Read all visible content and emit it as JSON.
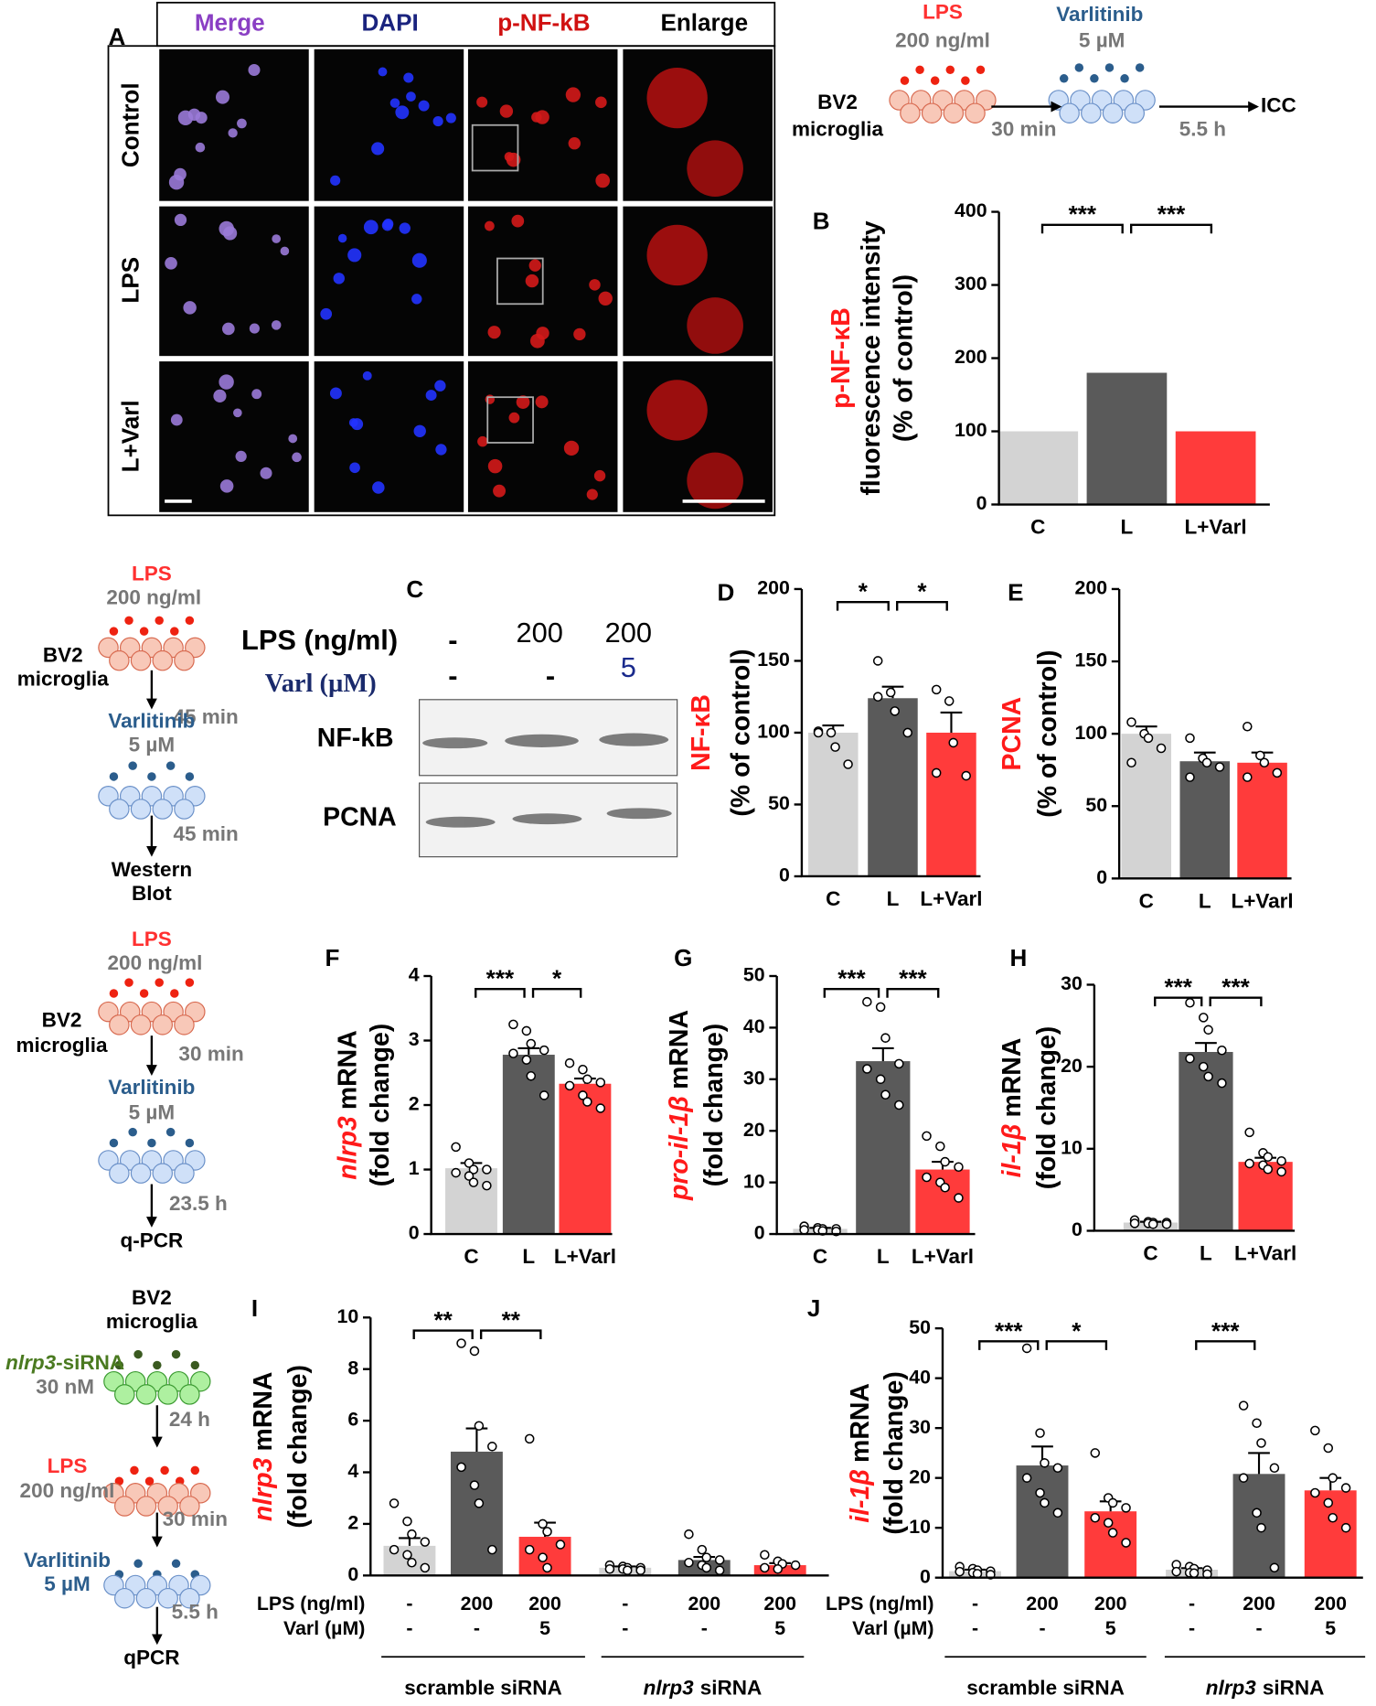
{
  "panel_a": {
    "label": "A",
    "columns": [
      "Merge",
      "DAPI",
      "p-NF-kB",
      "Enlarge"
    ],
    "rows": [
      "Control",
      "LPS",
      "L+Varl"
    ]
  },
  "schematic_icc": {
    "lps": "LPS",
    "lps_dose": "200 ng/ml",
    "drug": "Varlitinib",
    "drug_dose": "5 µM",
    "cells": [
      "BV2",
      "microglia"
    ],
    "time1": "30 min",
    "time2": "5.5 h",
    "readout": "ICC"
  },
  "panel_c": {
    "label": "C",
    "lps_label": "LPS (ng/ml)",
    "lps": [
      "-",
      "200",
      "200"
    ],
    "varl_label": "Varl (µM)",
    "varl": [
      "-",
      "-",
      "5"
    ],
    "bands": [
      "NF-kB",
      "PCNA"
    ]
  },
  "schematic_wb": {
    "lps": "LPS",
    "lps_dose": "200 ng/ml",
    "cells": [
      "BV2",
      "microglia"
    ],
    "time1": "45 min",
    "drug": "Varlitinib",
    "drug_dose": "5 µM",
    "time2": "45 min",
    "readout": [
      "Western",
      "Blot"
    ]
  },
  "schematic_qpcr": {
    "lps": "LPS",
    "lps_dose": "200 ng/ml",
    "cells": [
      "BV2",
      "microglia"
    ],
    "time1": "30 min",
    "drug": "Varlitinib",
    "drug_dose": "5 µM",
    "time2": "23.5 h",
    "readout": "q-PCR"
  },
  "schematic_sirna": {
    "cells": [
      "BV2",
      "microglia"
    ],
    "sirna_gene": "nlrp3",
    "sirna_suffix": "-siRNA",
    "sirna_dose": "30 nM",
    "time1": "24 h",
    "lps": "LPS",
    "lps_dose": "200 ng/ml",
    "time2": "30 min",
    "drug": "Varlitinib",
    "drug_dose": "5 µM",
    "time3": "5.5 h",
    "readout": "qPCR"
  },
  "chart_data": [
    {
      "type": "bar",
      "panel": "B",
      "ylabel": [
        [
          {
            "text": "p-NF-κB",
            "color": "#ff1a1a"
          }
        ],
        [
          {
            "text": "fluorescence intensity"
          }
        ],
        [
          {
            "text": "(% of control)"
          }
        ]
      ],
      "categories": [
        "C",
        "L",
        "L+Varl"
      ],
      "values": [
        100,
        180,
        100
      ],
      "colors": [
        "#d3d3d3",
        "#5a5a5a",
        "#ff3b3b"
      ],
      "ylim": [
        0,
        400
      ],
      "yticks": [
        0,
        100,
        200,
        300,
        400
      ],
      "sig": [
        {
          "from": 0,
          "to": 1,
          "label": "***"
        },
        {
          "from": 1,
          "to": 2,
          "label": "***"
        }
      ]
    },
    {
      "type": "bar",
      "panel": "D",
      "ylabel": [
        [
          {
            "text": "NF-κB",
            "color": "#ff1a1a"
          }
        ],
        [
          {
            "text": "(% of control)"
          }
        ]
      ],
      "categories": [
        "C",
        "L",
        "L+Varl"
      ],
      "values": [
        100,
        124,
        100
      ],
      "errors": [
        5,
        8,
        14
      ],
      "points": [
        [
          101,
          100,
          90,
          78,
          100
        ],
        [
          150,
          128,
          115,
          100,
          125
        ],
        [
          130,
          122,
          93,
          70,
          72
        ]
      ],
      "colors": [
        "#d3d3d3",
        "#5a5a5a",
        "#ff3b3b"
      ],
      "ylim": [
        0,
        200
      ],
      "yticks": [
        0,
        50,
        100,
        150,
        200
      ],
      "sig": [
        {
          "from": 0,
          "to": 1,
          "label": "*"
        },
        {
          "from": 1,
          "to": 2,
          "label": "*"
        }
      ]
    },
    {
      "type": "bar",
      "panel": "E",
      "ylabel": [
        [
          {
            "text": "PCNA",
            "color": "#ff1a1a"
          }
        ],
        [
          {
            "text": "(% of control)"
          }
        ]
      ],
      "categories": [
        "C",
        "L",
        "L+Varl"
      ],
      "values": [
        100,
        81,
        80
      ],
      "errors": [
        5,
        6,
        7
      ],
      "points": [
        [
          108,
          100,
          97,
          90,
          80
        ],
        [
          97,
          83,
          80,
          77,
          70
        ],
        [
          105,
          85,
          80,
          73,
          70
        ]
      ],
      "colors": [
        "#d3d3d3",
        "#5a5a5a",
        "#ff3b3b"
      ],
      "ylim": [
        0,
        200
      ],
      "yticks": [
        0,
        50,
        100,
        150,
        200
      ]
    },
    {
      "type": "bar",
      "panel": "F",
      "ylabel": [
        [
          {
            "text": "nlrp3",
            "color": "#ff1a1a",
            "italic": true
          },
          {
            "text": "mRNA"
          }
        ],
        [
          {
            "text": "(fold change)"
          }
        ]
      ],
      "categories": [
        "C",
        "L",
        "L+Varl"
      ],
      "values": [
        1.02,
        2.78,
        2.33
      ],
      "errors": [
        0.08,
        0.1,
        0.08
      ],
      "points": [
        [
          1.35,
          1.1,
          1.0,
          1.0,
          0.95,
          0.9,
          0.8,
          0.75
        ],
        [
          3.25,
          3.15,
          2.95,
          2.85,
          2.8,
          2.7,
          2.45,
          2.15
        ],
        [
          2.65,
          2.55,
          2.4,
          2.35,
          2.3,
          2.15,
          2.05,
          1.95
        ]
      ],
      "colors": [
        "#d3d3d3",
        "#5a5a5a",
        "#ff3b3b"
      ],
      "ylim": [
        0,
        4
      ],
      "yticks": [
        0,
        1,
        2,
        3,
        4
      ],
      "sig": [
        {
          "from": 0,
          "to": 1,
          "label": "***"
        },
        {
          "from": 1,
          "to": 2,
          "label": "*"
        }
      ]
    },
    {
      "type": "bar",
      "panel": "G",
      "ylabel": [
        [
          {
            "text": "pro-il-1β",
            "color": "#ff1a1a",
            "italic": true
          },
          {
            "text": "mRNA"
          }
        ],
        [
          {
            "text": "(fold change)"
          }
        ]
      ],
      "categories": [
        "C",
        "L",
        "L+Varl"
      ],
      "values": [
        1,
        33.5,
        12.5
      ],
      "errors": [
        0.2,
        2.5,
        1.5
      ],
      "points": [
        [
          1.5,
          1.2,
          1,
          1,
          0.8,
          0.8,
          0.6,
          0.5
        ],
        [
          45,
          44,
          38,
          33,
          32,
          30,
          27,
          25
        ],
        [
          19,
          17,
          14,
          13,
          11,
          10,
          9,
          7
        ]
      ],
      "colors": [
        "#d3d3d3",
        "#5a5a5a",
        "#ff3b3b"
      ],
      "ylim": [
        0,
        50
      ],
      "yticks": [
        0,
        10,
        20,
        30,
        40,
        50
      ],
      "sig": [
        {
          "from": 0,
          "to": 1,
          "label": "***"
        },
        {
          "from": 1,
          "to": 2,
          "label": "***"
        }
      ]
    },
    {
      "type": "bar",
      "panel": "H",
      "ylabel": [
        [
          {
            "text": "il-1β",
            "color": "#ff1a1a",
            "italic": true
          },
          {
            "text": "mRNA"
          }
        ],
        [
          {
            "text": "(fold change)"
          }
        ]
      ],
      "categories": [
        "C",
        "L",
        "L+Varl"
      ],
      "values": [
        1,
        21.8,
        8.4
      ],
      "errors": [
        0.1,
        1.1,
        0.5
      ],
      "points": [
        [
          1.3,
          1.1,
          1,
          1,
          0.9,
          0.9,
          0.8,
          0.8
        ],
        [
          27.8,
          26,
          24.5,
          22,
          21,
          20,
          18.8,
          18
        ],
        [
          12,
          9.5,
          9,
          8.5,
          8.2,
          8,
          7.5,
          7.2
        ]
      ],
      "colors": [
        "#d3d3d3",
        "#5a5a5a",
        "#ff3b3b"
      ],
      "ylim": [
        0,
        30
      ],
      "yticks": [
        0,
        10,
        20,
        30
      ],
      "sig": [
        {
          "from": 0,
          "to": 1,
          "label": "***"
        },
        {
          "from": 1,
          "to": 2,
          "label": "***"
        }
      ]
    },
    {
      "type": "bar",
      "panel": "I",
      "ylabel": [
        [
          {
            "text": "nlrp3",
            "color": "#ff1a1a",
            "italic": true
          },
          {
            "text": "mRNA"
          }
        ],
        [
          {
            "text": "(fold change)"
          }
        ]
      ],
      "row_labels": [
        "LPS (ng/ml)",
        "Varl (µM)"
      ],
      "categories": [
        "-",
        "200",
        "200",
        "-",
        "200",
        "200"
      ],
      "categories2": [
        "-",
        "-",
        "5",
        "-",
        "-",
        "5"
      ],
      "categories2_colors": [
        "#000",
        "#000",
        "#1a1aa6",
        "#000",
        "#000",
        "#1a1aa6"
      ],
      "groups": [
        [
          {
            "text": "scramble siRNA"
          }
        ],
        [
          {
            "text": "nlrp3",
            "italic": true
          },
          {
            "text": "siRNA"
          }
        ]
      ],
      "values": [
        1.15,
        4.8,
        1.5,
        0.3,
        0.6,
        0.4
      ],
      "errors": [
        0.3,
        0.9,
        0.55,
        0.05,
        0.12,
        0.08
      ],
      "points": [
        [
          2.8,
          2.1,
          1.6,
          1.3,
          1,
          0.8,
          0.5,
          0.3
        ],
        [
          9,
          8.7,
          5.8,
          5,
          4.2,
          3.5,
          2.8,
          1
        ],
        [
          5.3,
          2,
          1.7,
          1.2,
          1,
          0.7,
          0.3
        ],
        [
          0.4,
          0.35,
          0.3,
          0.3,
          0.25,
          0.25,
          0.2,
          0.2
        ],
        [
          1.6,
          1,
          0.7,
          0.6,
          0.5,
          0.4,
          0.3,
          0.2
        ],
        [
          0.8,
          0.55,
          0.45,
          0.4,
          0.3,
          0.25
        ]
      ],
      "colors": [
        "#d3d3d3",
        "#5a5a5a",
        "#ff3b3b",
        "#d3d3d3",
        "#5a5a5a",
        "#ff3b3b"
      ],
      "ylim": [
        0,
        10
      ],
      "yticks": [
        0,
        2,
        4,
        6,
        8,
        10
      ],
      "sig": [
        {
          "from": 0,
          "to": 1,
          "label": "**"
        },
        {
          "from": 1,
          "to": 2,
          "label": "**"
        }
      ]
    },
    {
      "type": "bar",
      "panel": "J",
      "ylabel": [
        [
          {
            "text": "il-1β",
            "color": "#ff1a1a",
            "italic": true
          },
          {
            "text": "mRNA"
          }
        ],
        [
          {
            "text": "(fold change)"
          }
        ]
      ],
      "row_labels": [
        "LPS (ng/ml)",
        "Varl (µM)"
      ],
      "categories": [
        "-",
        "200",
        "200",
        "-",
        "200",
        "200"
      ],
      "categories2": [
        "-",
        "-",
        "5",
        "-",
        "-",
        "5"
      ],
      "categories2_colors": [
        "#000",
        "#000",
        "#1a1aa6",
        "#000",
        "#000",
        "#1a1aa6"
      ],
      "groups": [
        [
          {
            "text": "scramble siRNA"
          }
        ],
        [
          {
            "text": "nlrp3",
            "italic": true
          },
          {
            "text": "siRNA"
          }
        ]
      ],
      "values": [
        1.3,
        22.5,
        13.3,
        1.6,
        20.8,
        17.5
      ],
      "errors": [
        0.3,
        3.8,
        2,
        0.3,
        4.2,
        2.5
      ],
      "points": [
        [
          2.2,
          1.8,
          1.5,
          1.3,
          1.2,
          1,
          0.8,
          0.6
        ],
        [
          46,
          29,
          23,
          22,
          20,
          17,
          15,
          13
        ],
        [
          25,
          16,
          15,
          14,
          12,
          11,
          9,
          7
        ],
        [
          2.6,
          2.2,
          1.8,
          1.5,
          1.2,
          1.0,
          0.9,
          0.7
        ],
        [
          34.5,
          31,
          27,
          22,
          20,
          13,
          10,
          2
        ],
        [
          29.5,
          26,
          20,
          18,
          17,
          15,
          12,
          10
        ]
      ],
      "colors": [
        "#d3d3d3",
        "#5a5a5a",
        "#ff3b3b",
        "#d3d3d3",
        "#5a5a5a",
        "#ff3b3b"
      ],
      "ylim": [
        0,
        50
      ],
      "yticks": [
        0,
        10,
        20,
        30,
        40,
        50
      ],
      "sig": [
        {
          "from": 0,
          "to": 1,
          "label": "***"
        },
        {
          "from": 1,
          "to": 2,
          "label": "*"
        },
        {
          "from": 3,
          "to": 4,
          "label": "***"
        }
      ]
    }
  ]
}
